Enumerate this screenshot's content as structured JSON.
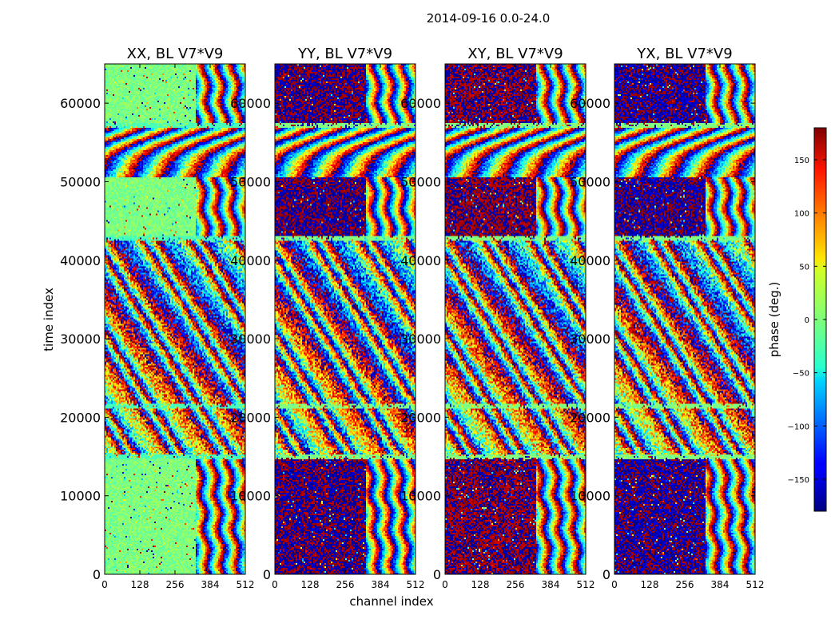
{
  "figure": {
    "suptitle": "2014-09-16 0.0-24.0",
    "xlabel": "channel index",
    "ylabel": "time index"
  },
  "colorbar": {
    "label": "phase (deg.)",
    "range": [
      -180,
      180
    ],
    "ticks": [
      -150,
      -100,
      -50,
      0,
      50,
      100,
      150
    ],
    "tick_labels": [
      "−150",
      "−100",
      "−50",
      "0",
      "50",
      "100",
      "150"
    ],
    "colormap": "jet"
  },
  "chart_data": {
    "type": "heatmap",
    "x_range": [
      0,
      512
    ],
    "y_range": [
      0,
      65000
    ],
    "x_ticks": [
      0,
      128,
      256,
      384,
      512
    ],
    "x_tick_labels": [
      "0",
      "128",
      "256",
      "384",
      "512"
    ],
    "y_ticks": [
      0,
      10000,
      20000,
      30000,
      40000,
      50000,
      60000
    ],
    "y_tick_labels": [
      "0",
      "10000",
      "20000",
      "30000",
      "40000",
      "50000",
      "60000"
    ],
    "panels": [
      {
        "title": "XX, BL V7*V9",
        "background_phase": 0
      },
      {
        "title": "YY, BL V7*V9",
        "background_phase": -175
      },
      {
        "title": "XY, BL V7*V9",
        "background_phase": 178
      },
      {
        "title": "YX, BL V7*V9",
        "background_phase": -170
      }
    ]
  }
}
